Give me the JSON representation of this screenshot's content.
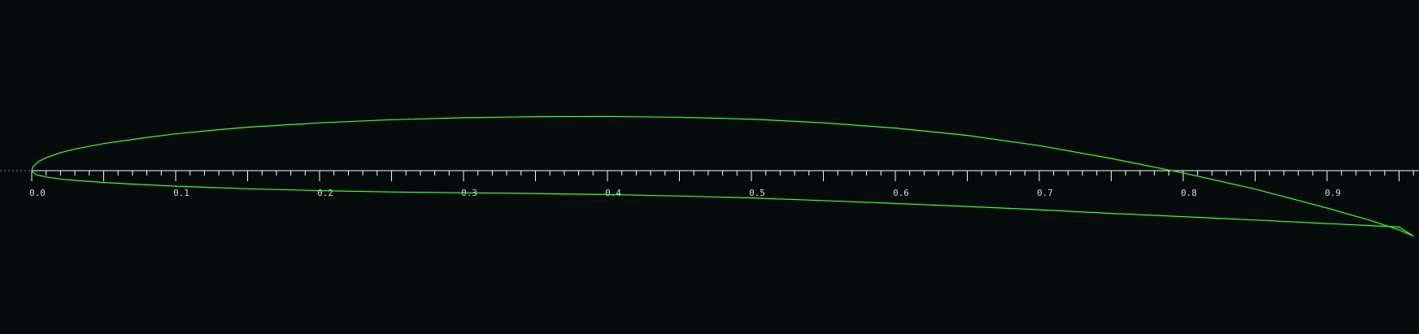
{
  "colors": {
    "background": "#050a0a",
    "airfoil": "#33ff33",
    "axis": "#ffffff",
    "tick_label": "#d8d8d8",
    "baseline_stub": "#8a8a8a"
  },
  "chart_data": {
    "type": "line",
    "title": "",
    "xlabel": "",
    "ylabel": "",
    "xlim": [
      0.0,
      0.96
    ],
    "ylim": [
      -0.0455,
      0.038
    ],
    "grid": false,
    "axis": {
      "x_major_step": 0.1,
      "x_minor_step": 0.01,
      "x_mid_step": 0.05
    },
    "tick_labels": [
      "0.0",
      "0.1",
      "0.2",
      "0.3",
      "0.4",
      "0.5",
      "0.6",
      "0.7",
      "0.8",
      "0.9"
    ],
    "series": [
      {
        "upper_surface": {
          "x": [
            0.0,
            0.001,
            0.005,
            0.01,
            0.02,
            0.03,
            0.05,
            0.075,
            0.1,
            0.125,
            0.15,
            0.2,
            0.25,
            0.3,
            0.35,
            0.4,
            0.45,
            0.5,
            0.55,
            0.6,
            0.65,
            0.7,
            0.75,
            0.8,
            0.85,
            0.9,
            0.93,
            0.95,
            0.96
          ],
          "y": [
            0.0,
            0.003,
            0.0065,
            0.009,
            0.0125,
            0.015,
            0.0188,
            0.0224,
            0.0256,
            0.028,
            0.0302,
            0.0332,
            0.0354,
            0.0368,
            0.0375,
            0.0376,
            0.0371,
            0.0358,
            0.0333,
            0.0296,
            0.0245,
            0.0174,
            0.0085,
            -0.0016,
            -0.0128,
            -0.026,
            -0.0346,
            -0.0412,
            -0.0455
          ]
        },
        "lower_surface": {
          "x": [
            0.0,
            0.003,
            0.01,
            0.02,
            0.03,
            0.05,
            0.075,
            0.1,
            0.15,
            0.2,
            0.25,
            0.3,
            0.35,
            0.4,
            0.45,
            0.5,
            0.55,
            0.6,
            0.65,
            0.7,
            0.75,
            0.8,
            0.85,
            0.9,
            0.95,
            0.96
          ],
          "y": [
            0.0,
            -0.0028,
            -0.0044,
            -0.0058,
            -0.0068,
            -0.0082,
            -0.0096,
            -0.0108,
            -0.0126,
            -0.0139,
            -0.0148,
            -0.0154,
            -0.0159,
            -0.0166,
            -0.0176,
            -0.019,
            -0.0208,
            -0.0228,
            -0.0249,
            -0.0272,
            -0.0297,
            -0.032,
            -0.0343,
            -0.0368,
            -0.0392,
            -0.0455
          ]
        }
      }
    ]
  }
}
